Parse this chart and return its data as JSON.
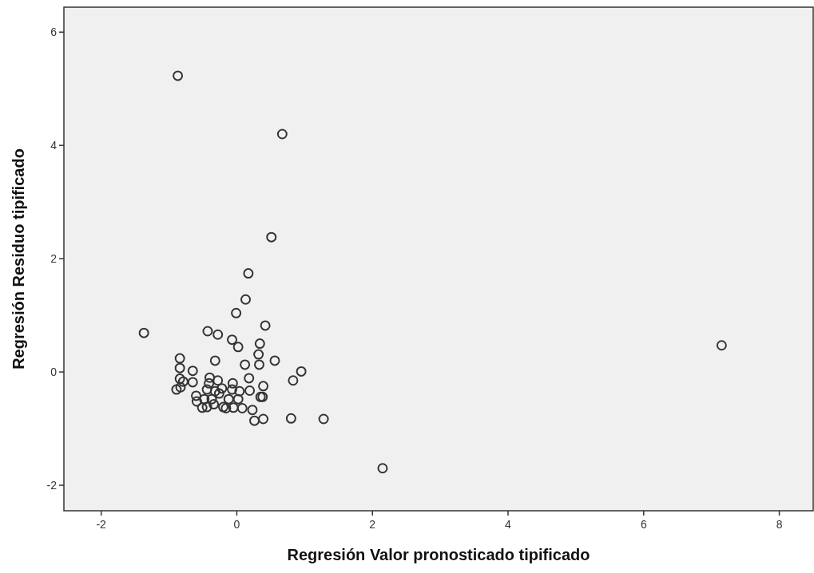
{
  "chart_data": {
    "type": "scatter",
    "xlabel": "Regresión Valor pronosticado tipificado",
    "ylabel": "Regresión Residuo tipificado",
    "xlim": [
      -2.55,
      8.5
    ],
    "ylim": [
      -2.45,
      6.44
    ],
    "xticks": [
      -2,
      0,
      2,
      4,
      6,
      8
    ],
    "yticks": [
      -2,
      0,
      2,
      4,
      6
    ],
    "grid": false,
    "marker": "circle",
    "series": [
      {
        "color": "#333333",
        "x": [
          -0.87,
          0.67,
          7.15,
          2.15,
          0.51,
          0.17,
          0.13,
          -0.01,
          0.42,
          -1.37,
          -0.43,
          -0.28,
          -0.07,
          0.02,
          0.34,
          0.32,
          0.56,
          -0.32,
          0.12,
          0.33,
          -0.84,
          -0.84,
          -0.65,
          0.95,
          0.83,
          -0.84,
          -0.79,
          -0.65,
          -0.89,
          -0.83,
          0.18,
          0.39,
          0.19,
          0.35,
          0.38,
          -0.6,
          -0.59,
          -0.51,
          -0.4,
          -0.41,
          -0.28,
          -0.32,
          -0.44,
          -0.37,
          -0.26,
          -0.2,
          -0.16,
          -0.06,
          -0.07,
          0.04,
          0.02,
          -0.12,
          -0.05,
          0.08,
          0.23,
          0.26,
          0.39,
          0.8,
          1.28,
          -0.48,
          -0.44,
          -0.34,
          -0.22
        ],
        "values": [
          5.23,
          4.2,
          0.47,
          -1.7,
          2.38,
          1.74,
          1.28,
          1.04,
          0.82,
          0.69,
          0.72,
          0.66,
          0.57,
          0.44,
          0.5,
          0.31,
          0.2,
          0.2,
          0.13,
          0.13,
          0.24,
          0.07,
          0.02,
          0.01,
          -0.15,
          -0.12,
          -0.17,
          -0.18,
          -0.31,
          -0.27,
          -0.11,
          -0.25,
          -0.33,
          -0.44,
          -0.44,
          -0.42,
          -0.52,
          -0.63,
          -0.1,
          -0.2,
          -0.15,
          -0.34,
          -0.31,
          -0.48,
          -0.38,
          -0.62,
          -0.64,
          -0.2,
          -0.31,
          -0.34,
          -0.48,
          -0.48,
          -0.63,
          -0.64,
          -0.67,
          -0.86,
          -0.83,
          -0.82,
          -0.83,
          -0.48,
          -0.62,
          -0.57,
          -0.29
        ]
      }
    ]
  }
}
